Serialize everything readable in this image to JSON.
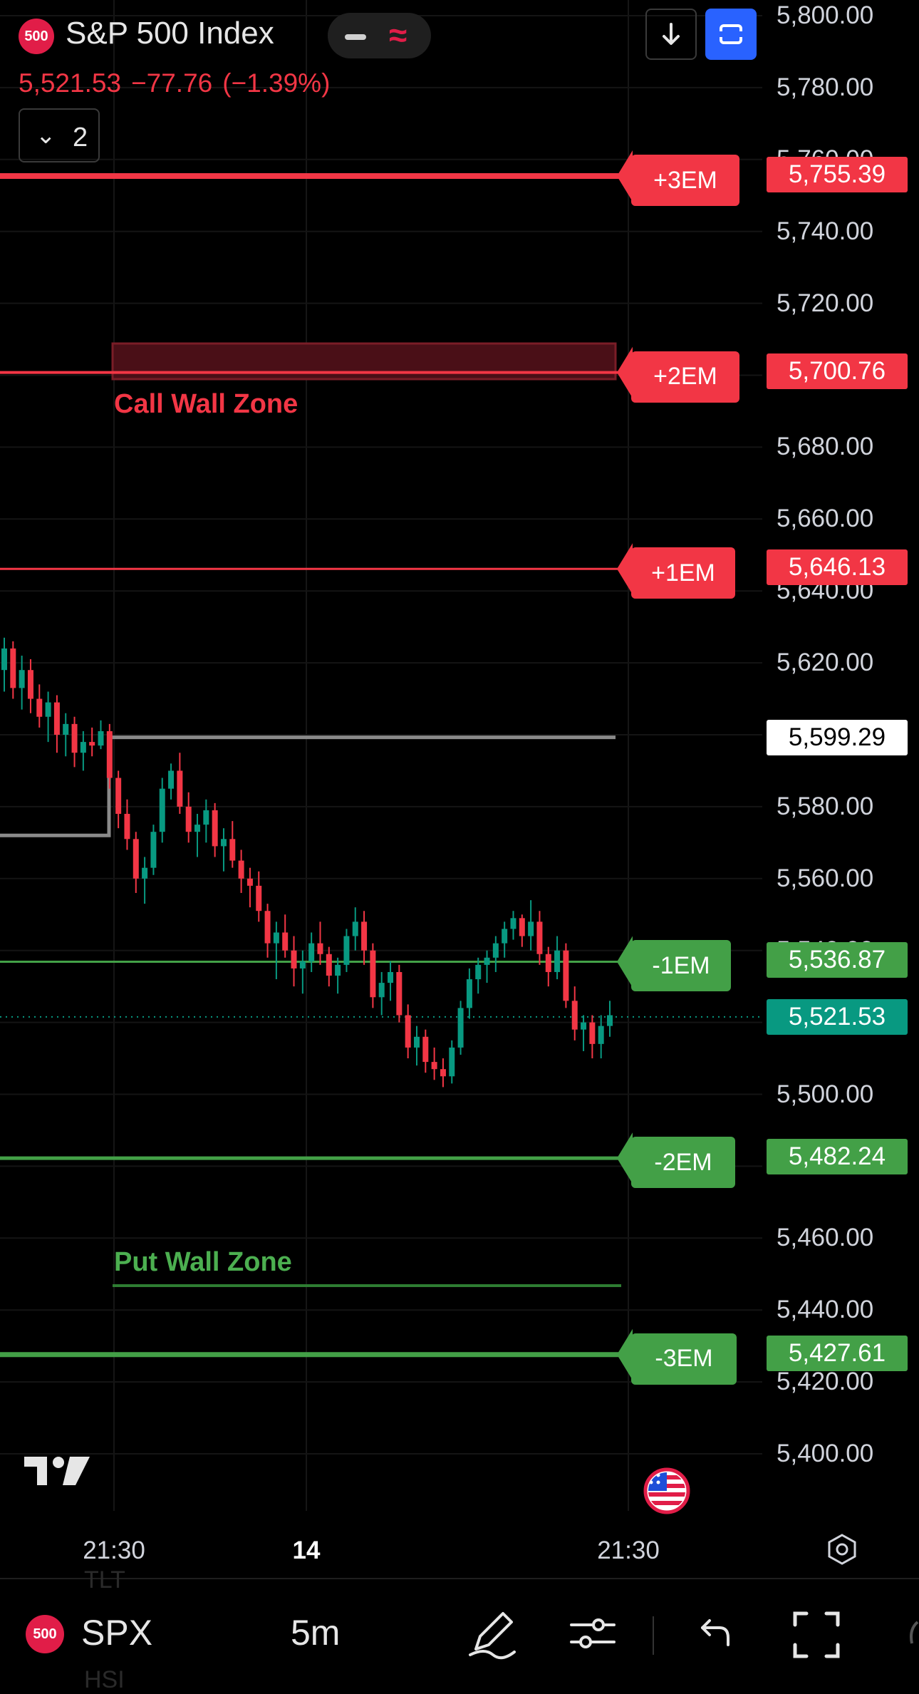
{
  "header": {
    "symbol_badge": "500",
    "title": "S&P 500 Index",
    "last_price": "5,521.53",
    "change": "−77.76",
    "change_pct": "(−1.39%)",
    "collapse_count": "2",
    "icons": [
      "minus-icon",
      "wave-icon",
      "download-icon",
      "fullscreen-icon"
    ]
  },
  "price_axis": {
    "labels": [
      "5,800.00",
      "5,780.00",
      "5,760.00",
      "5,740.00",
      "5,720.00",
      "5,680.00",
      "5,660.00",
      "5,640.00",
      "5,620.00",
      "5,580.00",
      "5,560.00",
      "5,540.00",
      "5,500.00",
      "5,460.00",
      "5,440.00",
      "5,420.00",
      "5,400.00"
    ],
    "current_price": "5,521.53",
    "prev_close": "5,599.29"
  },
  "levels": [
    {
      "label": "+3EM",
      "value": "5,755.39",
      "color": "#f23645"
    },
    {
      "label": "+2EM",
      "value": "5,700.76",
      "color": "#f23645"
    },
    {
      "label": "+1EM",
      "value": "5,646.13",
      "color": "#f23645"
    },
    {
      "label": "-1EM",
      "value": "5,536.87",
      "color": "#43a047"
    },
    {
      "label": "-2EM",
      "value": "5,482.24",
      "color": "#43a047"
    },
    {
      "label": "-3EM",
      "value": "5,427.61",
      "color": "#43a047"
    }
  ],
  "zones": {
    "call_wall": "Call Wall Zone",
    "put_wall": "Put Wall Zone"
  },
  "time_axis": {
    "labels": [
      "21:30",
      "14",
      "21:30"
    ]
  },
  "bottom_bar": {
    "symbol_badge": "500",
    "symbol": "SPX",
    "interval": "5m",
    "ghost_top": "TLT",
    "ghost_bottom": "HSI"
  },
  "colors": {
    "bg": "#000000",
    "red": "#f23645",
    "green": "#43a047",
    "teal": "#089981",
    "blue": "#2962ff"
  },
  "chart_data": {
    "type": "candlestick",
    "interval": "5m",
    "y_range": [
      5390,
      5805
    ],
    "candles_ohlc": [
      [
        5618,
        5627,
        5612,
        5624
      ],
      [
        5624,
        5626,
        5610,
        5613
      ],
      [
        5613,
        5622,
        5607,
        5618
      ],
      [
        5618,
        5621,
        5606,
        5610
      ],
      [
        5610,
        5614,
        5602,
        5605
      ],
      [
        5605,
        5612,
        5598,
        5609
      ],
      [
        5609,
        5611,
        5595,
        5600
      ],
      [
        5600,
        5606,
        5594,
        5603
      ],
      [
        5603,
        5605,
        5591,
        5595
      ],
      [
        5595,
        5601,
        5590,
        5598
      ],
      [
        5598,
        5602,
        5594,
        5597
      ],
      [
        5597,
        5604,
        5596,
        5601
      ],
      [
        5601,
        5603,
        5585,
        5588
      ],
      [
        5588,
        5590,
        5574,
        5578
      ],
      [
        5578,
        5582,
        5568,
        5571
      ],
      [
        5571,
        5573,
        5556,
        5560
      ],
      [
        5560,
        5566,
        5553,
        5563
      ],
      [
        5563,
        5575,
        5561,
        5573
      ],
      [
        5573,
        5588,
        5570,
        5585
      ],
      [
        5585,
        5592,
        5582,
        5590
      ],
      [
        5590,
        5595,
        5578,
        5580
      ],
      [
        5580,
        5584,
        5570,
        5573
      ],
      [
        5573,
        5578,
        5566,
        5575
      ],
      [
        5575,
        5582,
        5570,
        5579
      ],
      [
        5579,
        5581,
        5566,
        5569
      ],
      [
        5569,
        5574,
        5562,
        5571
      ],
      [
        5571,
        5576,
        5563,
        5565
      ],
      [
        5565,
        5568,
        5556,
        5560
      ],
      [
        5560,
        5563,
        5552,
        5558
      ],
      [
        5558,
        5562,
        5548,
        5551
      ],
      [
        5551,
        5553,
        5538,
        5542
      ],
      [
        5542,
        5548,
        5532,
        5545
      ],
      [
        5545,
        5550,
        5538,
        5540
      ],
      [
        5540,
        5544,
        5530,
        5535
      ],
      [
        5535,
        5540,
        5528,
        5537
      ],
      [
        5537,
        5545,
        5534,
        5542
      ],
      [
        5542,
        5548,
        5536,
        5539
      ],
      [
        5539,
        5541,
        5530,
        5533
      ],
      [
        5533,
        5538,
        5528,
        5536
      ],
      [
        5536,
        5546,
        5534,
        5544
      ],
      [
        5544,
        5552,
        5540,
        5548
      ],
      [
        5548,
        5551,
        5536,
        5540
      ],
      [
        5540,
        5542,
        5524,
        5527
      ],
      [
        5527,
        5534,
        5522,
        5531
      ],
      [
        5531,
        5537,
        5526,
        5534
      ],
      [
        5534,
        5536,
        5520,
        5522
      ],
      [
        5522,
        5525,
        5510,
        5513
      ],
      [
        5513,
        5519,
        5508,
        5516
      ],
      [
        5516,
        5518,
        5506,
        5509
      ],
      [
        5509,
        5513,
        5504,
        5507
      ],
      [
        5507,
        5510,
        5502,
        5505
      ],
      [
        5505,
        5515,
        5503,
        5513
      ],
      [
        5513,
        5526,
        5511,
        5524
      ],
      [
        5524,
        5535,
        5521,
        5532
      ],
      [
        5532,
        5538,
        5528,
        5536
      ],
      [
        5536,
        5540,
        5531,
        5538
      ],
      [
        5538,
        5544,
        5534,
        5542
      ],
      [
        5542,
        5548,
        5538,
        5546
      ],
      [
        5546,
        5551,
        5543,
        5549
      ],
      [
        5549,
        5550,
        5541,
        5544
      ],
      [
        5544,
        5554,
        5540,
        5548
      ],
      [
        5548,
        5551,
        5536,
        5539
      ],
      [
        5539,
        5541,
        5530,
        5534
      ],
      [
        5534,
        5544,
        5532,
        5540
      ],
      [
        5540,
        5542,
        5524,
        5526
      ],
      [
        5526,
        5530,
        5515,
        5518
      ],
      [
        5518,
        5522,
        5512,
        5520
      ],
      [
        5520,
        5522,
        5510,
        5514
      ],
      [
        5514,
        5522,
        5510,
        5519
      ],
      [
        5519,
        5526,
        5516,
        5522
      ]
    ]
  }
}
